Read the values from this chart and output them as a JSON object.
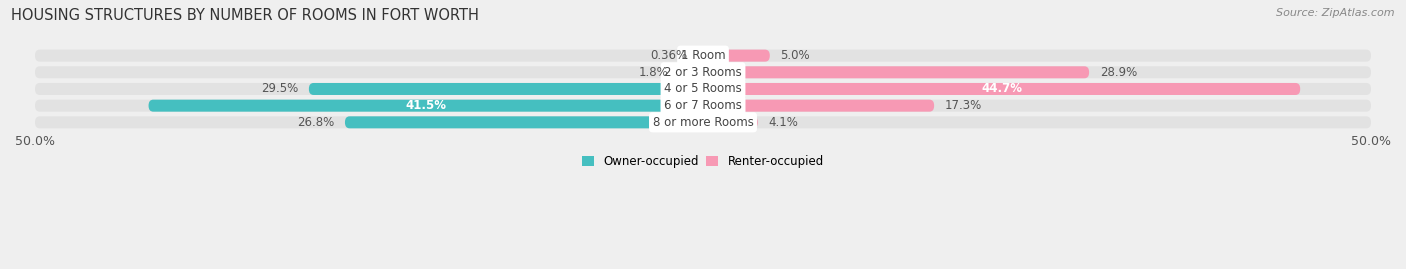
{
  "title": "HOUSING STRUCTURES BY NUMBER OF ROOMS IN FORT WORTH",
  "source": "Source: ZipAtlas.com",
  "categories": [
    "1 Room",
    "2 or 3 Rooms",
    "4 or 5 Rooms",
    "6 or 7 Rooms",
    "8 or more Rooms"
  ],
  "owner_values": [
    0.36,
    1.8,
    29.5,
    41.5,
    26.8
  ],
  "renter_values": [
    5.0,
    28.9,
    44.7,
    17.3,
    4.1
  ],
  "owner_label_inside": [
    false,
    false,
    false,
    true,
    false
  ],
  "renter_label_inside": [
    false,
    false,
    true,
    false,
    false
  ],
  "owner_color": "#45bfc0",
  "renter_color": "#f799b4",
  "owner_label": "Owner-occupied",
  "renter_label": "Renter-occupied",
  "xlim": 50.0,
  "background_color": "#efefef",
  "bar_background": "#e2e2e2",
  "title_fontsize": 10.5,
  "source_fontsize": 8,
  "value_fontsize": 8.5,
  "cat_fontsize": 8.5,
  "axis_label_fontsize": 9,
  "bar_height": 0.72,
  "bar_gap": 0.18
}
